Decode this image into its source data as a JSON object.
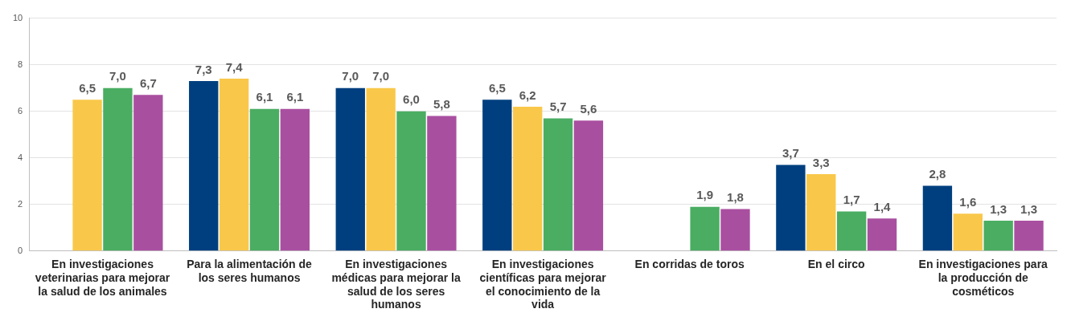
{
  "chart_data": {
    "type": "bar",
    "categories": [
      "En investigaciones veterinarias para mejorar la salud de los animales",
      "Para la alimentación de los seres humanos",
      "En investigaciones médicas para mejorar la salud de los seres humanos",
      "En investigaciones científicas para mejorar el conocimiento de la vida",
      "En corridas de toros",
      "En el circo",
      "En investigaciones para la producción de cosméticos"
    ],
    "series": [
      {
        "color": "#003f7f",
        "values": [
          null,
          7.3,
          7.0,
          6.5,
          null,
          3.7,
          2.8
        ],
        "value_labels": [
          null,
          "7,3",
          "7,0",
          "6,5",
          null,
          "3,7",
          "2,8"
        ]
      },
      {
        "color": "#f9c84a",
        "values": [
          6.5,
          7.4,
          7.0,
          6.2,
          null,
          3.3,
          1.6
        ],
        "value_labels": [
          "6,5",
          "7,4",
          "7,0",
          "6,2",
          null,
          "3,3",
          "1,6"
        ]
      },
      {
        "color": "#4aad62",
        "values": [
          7.0,
          6.1,
          6.0,
          5.7,
          1.9,
          1.7,
          1.3
        ],
        "value_labels": [
          "7,0",
          "6,1",
          "6,0",
          "5,7",
          "1,9",
          "1,7",
          "1,3"
        ]
      },
      {
        "color": "#a94fa0",
        "values": [
          6.7,
          6.1,
          5.8,
          5.6,
          1.8,
          1.4,
          1.3
        ],
        "value_labels": [
          "6,7",
          "6,1",
          "5,8",
          "5,6",
          "1,8",
          "1,4",
          "1,3"
        ]
      }
    ],
    "ylim": [
      0,
      10
    ],
    "yticks": [
      0,
      2,
      4,
      6,
      8,
      10
    ],
    "grid": "y",
    "legend": false
  }
}
